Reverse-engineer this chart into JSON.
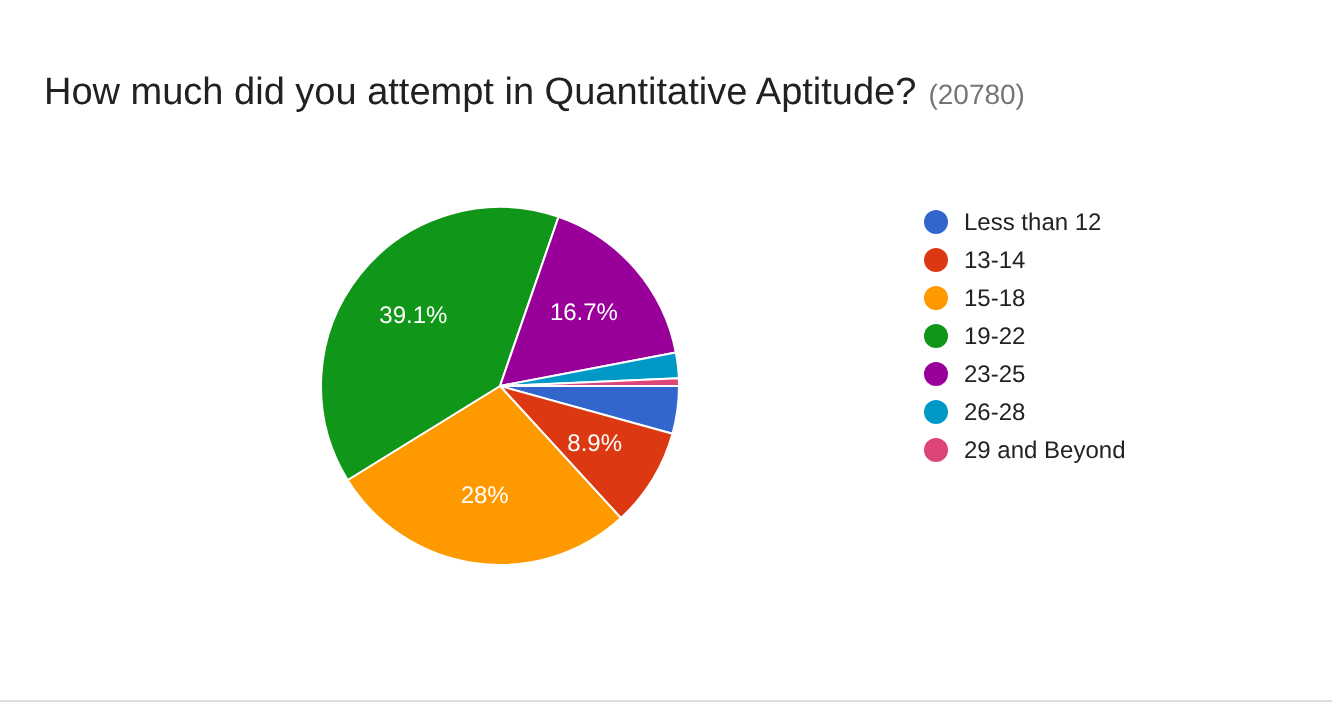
{
  "chart_data": {
    "type": "pie",
    "title": "How much did you attempt in Quantitative Aptitude?",
    "subtitle": "(20780)",
    "categories": [
      "Less than 12",
      "13-14",
      "15-18",
      "19-22",
      "23-25",
      "26-28",
      "29 and Beyond"
    ],
    "values": [
      4.3,
      8.9,
      28,
      39.1,
      16.7,
      2.3,
      0.7
    ],
    "value_labels": [
      null,
      "8.9%",
      "28%",
      "39.1%",
      "16.7%",
      null,
      null
    ],
    "colors": [
      "#3366cc",
      "#dc3912",
      "#ff9900",
      "#109618",
      "#990099",
      "#0099c6",
      "#dd4477"
    ],
    "legend": "right"
  }
}
